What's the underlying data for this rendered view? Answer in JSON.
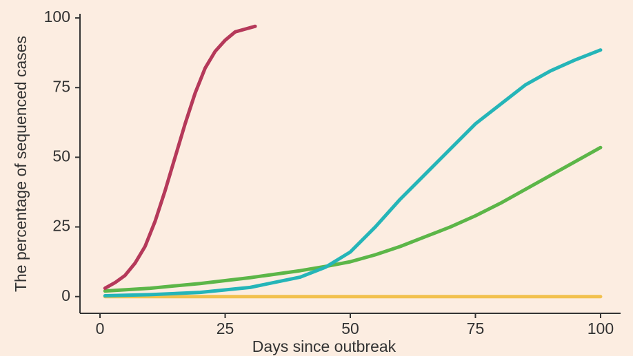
{
  "chart_data": {
    "type": "line",
    "x_label": "Days since outbreak",
    "y_label": "The percentage of sequenced cases",
    "xlim": [
      -4,
      104
    ],
    "ylim": [
      -6,
      101.5
    ],
    "xticks": [
      0,
      25,
      50,
      75,
      100
    ],
    "yticks": [
      0,
      25,
      50,
      75,
      100
    ],
    "series": [
      {
        "color": "#b5395a",
        "x": [
          1,
          3,
          5,
          7,
          9,
          11,
          13,
          15,
          17,
          19,
          21,
          23,
          25,
          27,
          29,
          31
        ],
        "values": [
          3,
          5,
          7.6,
          12,
          18,
          27,
          38,
          50,
          62,
          73,
          82,
          88,
          92,
          95,
          96,
          97
        ]
      },
      {
        "color": "#5cb648",
        "x": [
          1,
          10,
          20,
          30,
          40,
          45,
          50,
          55,
          60,
          65,
          70,
          75,
          80,
          85,
          90,
          95,
          100
        ],
        "values": [
          2,
          3,
          4.7,
          6.8,
          9.3,
          10.8,
          12.5,
          15,
          18,
          21.5,
          25,
          29,
          33.5,
          38.5,
          43.5,
          48.5,
          53.5
        ]
      },
      {
        "color": "#25b5b8",
        "x": [
          1,
          10,
          20,
          30,
          40,
          45,
          50,
          55,
          60,
          65,
          70,
          75,
          80,
          85,
          90,
          95,
          100
        ],
        "values": [
          0.3,
          0.7,
          1.5,
          3.3,
          7,
          10.5,
          16,
          25,
          35,
          44,
          53,
          62,
          69,
          76,
          81,
          85,
          88.5
        ]
      },
      {
        "color": "#f2c14e",
        "x": [
          1,
          25,
          50,
          75,
          100
        ],
        "values": [
          0,
          0,
          0,
          0,
          0
        ]
      }
    ]
  }
}
